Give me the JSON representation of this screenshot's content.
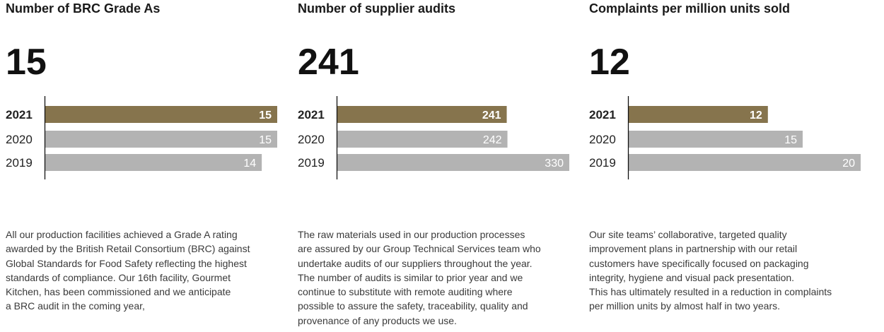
{
  "colors": {
    "current": "#86744d",
    "previous": "#b3b3b3",
    "axis": "#111111"
  },
  "panels": [
    {
      "title": "Number of BRC Grade As",
      "headline": "15",
      "description": "All our production facilities achieved a Grade A rating\nawarded by the British Retail Consortium (BRC) against\nGlobal Standards for Food Safety reflecting the highest\nstandards of compliance. Our 16th facility, Gourmet\nKitchen, has been commissioned and we anticipate\na BRC audit in the coming year,"
    },
    {
      "title": "Number of supplier audits",
      "headline": "241",
      "description": "The raw materials used in our production processes\nare assured by our Group Technical Services team who\nundertake audits of our suppliers throughout the year.\nThe number of audits is similar to prior year and we\ncontinue to substitute with remote auditing where\npossible to assure the safety, traceability, quality and\nprovenance of any products we use."
    },
    {
      "title": "Complaints per million units sold",
      "headline": "12",
      "description": "Our site teams’ collaborative, targeted quality\nimprovement plans in partnership with our retail\ncustomers have specifically focused on packaging\nintegrity, hygiene and visual pack presentation.\nThis has ultimately resulted in a reduction in complaints\nper million units by almost half in two years."
    }
  ],
  "chart_data": [
    {
      "type": "bar",
      "orientation": "horizontal",
      "title": "Number of BRC Grade As",
      "categories": [
        "2021",
        "2020",
        "2019"
      ],
      "values": [
        15,
        15,
        14
      ],
      "value_labels": [
        "15",
        "15",
        "14"
      ],
      "xlim": [
        0,
        15
      ],
      "highlight": "2021"
    },
    {
      "type": "bar",
      "orientation": "horizontal",
      "title": "Number of supplier audits",
      "categories": [
        "2021",
        "2020",
        "2019"
      ],
      "values": [
        241,
        242,
        330
      ],
      "value_labels": [
        "241",
        "242",
        "330"
      ],
      "xlim": [
        0,
        330
      ],
      "highlight": "2021"
    },
    {
      "type": "bar",
      "orientation": "horizontal",
      "title": "Complaints per million units sold",
      "categories": [
        "2021",
        "2020",
        "2019"
      ],
      "values": [
        12,
        15,
        20
      ],
      "value_labels": [
        "12",
        "15",
        "20"
      ],
      "xlim": [
        0,
        20
      ],
      "highlight": "2021"
    }
  ]
}
